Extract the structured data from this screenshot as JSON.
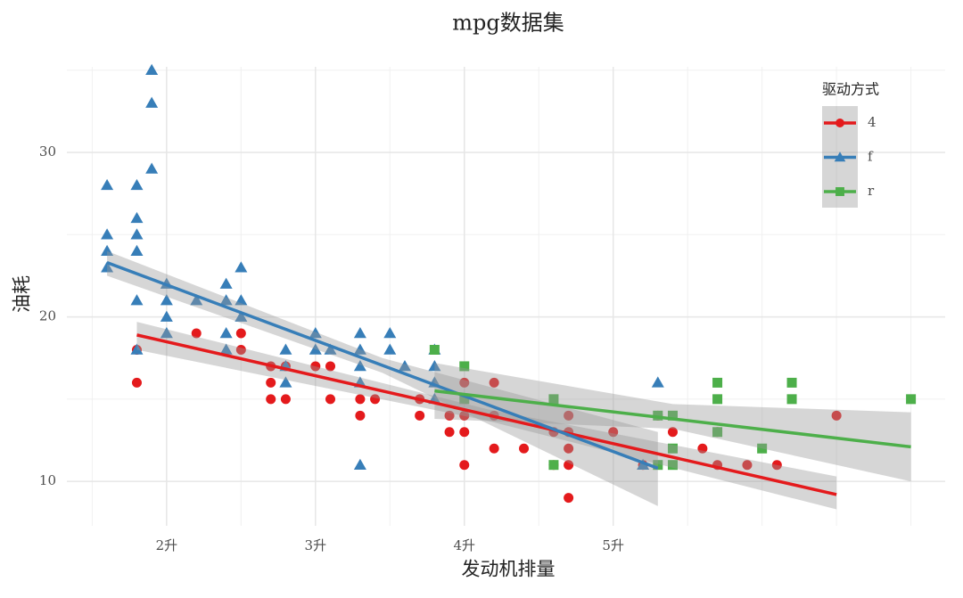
{
  "chart_data": {
    "type": "scatter",
    "title": "mpg数据集",
    "x_label": "发动机排量",
    "y_label": "油耗",
    "legend_title": "驱动方式",
    "legend_position": "top-right",
    "xlim": [
      1.33,
      7.23
    ],
    "ylim": [
      7.3,
      35.2
    ],
    "xticks": [
      {
        "value": 2,
        "label": "2升"
      },
      {
        "value": 3,
        "label": "3升"
      },
      {
        "value": 4,
        "label": "4升"
      },
      {
        "value": 5,
        "label": "5升"
      }
    ],
    "yticks": [
      10,
      20,
      30
    ],
    "x_minor_grid": [
      1.5,
      2.5,
      3.5,
      4.5,
      5.5,
      6,
      6.5,
      7
    ],
    "y_minor_grid": [
      15,
      25,
      35
    ],
    "grid": true,
    "series": [
      {
        "name": "4",
        "color": "#e41a1c",
        "shape": "circle",
        "x": [
          1.8,
          1.8,
          2.2,
          2.5,
          2.5,
          2.7,
          2.7,
          2.7,
          2.8,
          2.8,
          3.0,
          3.1,
          3.1,
          3.3,
          3.3,
          3.4,
          3.7,
          3.7,
          3.9,
          3.9,
          4.0,
          4.0,
          4.0,
          4.0,
          4.2,
          4.2,
          4.2,
          4.4,
          4.6,
          4.6,
          4.7,
          4.7,
          4.7,
          4.7,
          4.7,
          5.0,
          5.2,
          5.3,
          5.4,
          5.6,
          5.7,
          5.7,
          5.9,
          6.1,
          6.5
        ],
        "values": [
          16,
          18,
          19,
          19,
          18,
          17,
          16,
          15,
          17,
          15,
          17,
          17,
          15,
          15,
          14,
          15,
          15,
          14,
          14,
          13,
          16,
          14,
          13,
          11,
          16,
          14,
          12,
          12,
          13,
          11,
          14,
          13,
          12,
          11,
          9,
          13,
          11,
          14,
          13,
          12,
          13,
          11,
          11,
          11,
          14
        ],
        "fit": {
          "x": [
            1.8,
            4.15,
            6.5
          ],
          "values": [
            18.9,
            14.05,
            9.2
          ],
          "lower": [
            18.0,
            13.7,
            8.3
          ],
          "upper": [
            19.7,
            14.4,
            10.3
          ]
        }
      },
      {
        "name": "f",
        "color": "#377eb8",
        "shape": "triangle",
        "x": [
          1.6,
          1.6,
          1.6,
          1.6,
          1.8,
          1.8,
          1.8,
          1.8,
          1.8,
          1.8,
          1.9,
          1.9,
          1.9,
          2.0,
          2.0,
          2.0,
          2.0,
          2.2,
          2.4,
          2.4,
          2.4,
          2.4,
          2.5,
          2.5,
          2.5,
          2.8,
          2.8,
          2.8,
          3.0,
          3.0,
          3.1,
          3.3,
          3.3,
          3.3,
          3.3,
          3.3,
          3.5,
          3.5,
          3.6,
          3.8,
          3.8,
          3.8,
          3.8,
          5.3,
          5.2
        ],
        "values": [
          28,
          25,
          24,
          23,
          28,
          26,
          25,
          24,
          21,
          18,
          35,
          33,
          29,
          22,
          21,
          20,
          19,
          21,
          22,
          21,
          19,
          18,
          23,
          21,
          20,
          18,
          17,
          16,
          19,
          18,
          18,
          19,
          18,
          17,
          16,
          11,
          19,
          18,
          17,
          18,
          17,
          16,
          15,
          16,
          11
        ],
        "fit": {
          "x": [
            1.6,
            3.45,
            5.3
          ],
          "values": [
            23.3,
            17.05,
            10.8
          ],
          "lower": [
            22.5,
            16.6,
            8.5
          ],
          "upper": [
            24.0,
            17.5,
            13.0
          ]
        }
      },
      {
        "name": "r",
        "color": "#4daf4a",
        "shape": "square",
        "x": [
          3.8,
          4.0,
          4.0,
          4.6,
          4.6,
          5.3,
          5.3,
          5.4,
          5.4,
          5.4,
          5.7,
          5.7,
          5.7,
          6.0,
          6.2,
          6.2,
          7.0
        ],
        "values": [
          18,
          17,
          15,
          15,
          11,
          14,
          11,
          14,
          12,
          11,
          16,
          15,
          13,
          12,
          16,
          15,
          15
        ],
        "fit": {
          "x": [
            3.8,
            5.4,
            7.0
          ],
          "values": [
            15.5,
            13.8,
            12.1
          ],
          "lower": [
            13.8,
            13.2,
            10.0
          ],
          "upper": [
            17.2,
            14.7,
            14.2
          ]
        }
      }
    ]
  }
}
